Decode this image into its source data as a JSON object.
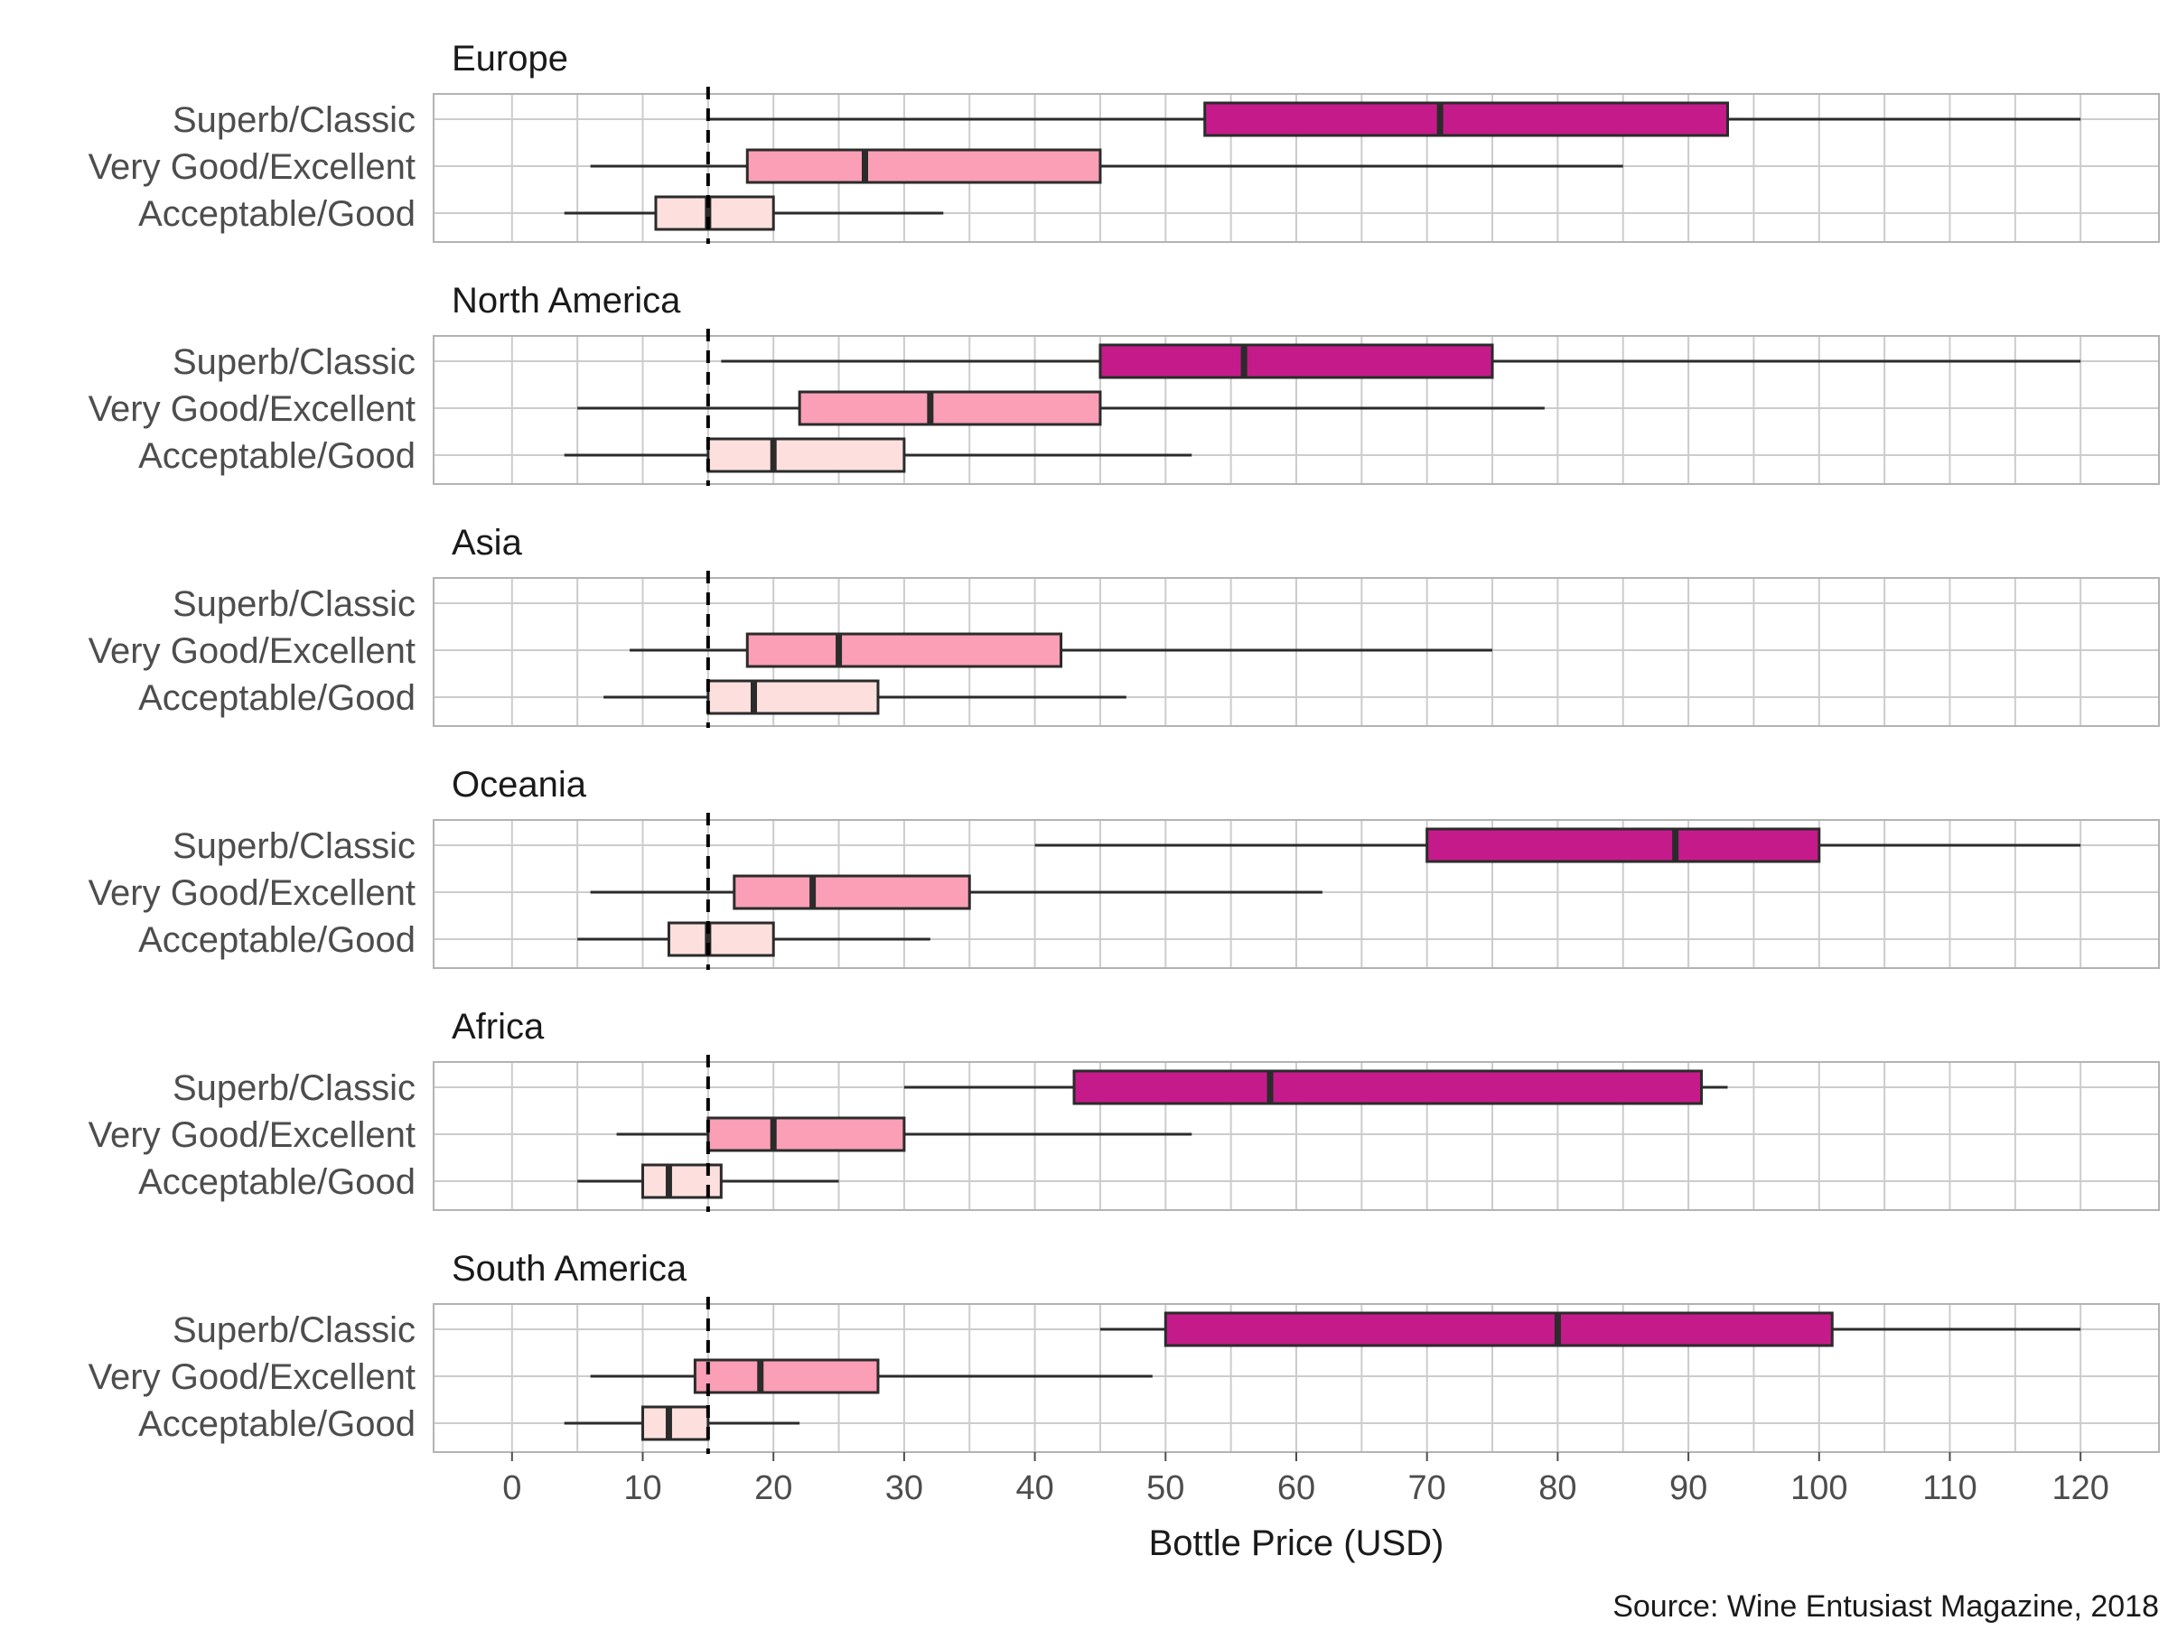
{
  "chart_data": {
    "type": "boxplot",
    "orientation": "horizontal",
    "xlabel": "Bottle Price (USD)",
    "caption": "Source: Wine Entusiast Magazine, 2018",
    "xlim": [
      -6,
      126
    ],
    "xticks": [
      0,
      10,
      20,
      30,
      40,
      50,
      60,
      70,
      80,
      90,
      100,
      110,
      120
    ],
    "reference_line": 15,
    "grid": true,
    "categories": [
      "Superb/Classic",
      "Very Good/Excellent",
      "Acceptable/Good"
    ],
    "colors": {
      "Superb/Classic": "#c51b8a",
      "Very Good/Excellent": "#fa9fb5",
      "Acceptable/Good": "#fde0dd"
    },
    "facets": [
      {
        "title": "Europe",
        "boxes": [
          {
            "category": "Superb/Classic",
            "whisker_low": 15,
            "q1": 53,
            "median": 71,
            "q3": 93,
            "whisker_high": 120
          },
          {
            "category": "Very Good/Excellent",
            "whisker_low": 6,
            "q1": 18,
            "median": 27,
            "q3": 45,
            "whisker_high": 85
          },
          {
            "category": "Acceptable/Good",
            "whisker_low": 4,
            "q1": 11,
            "median": 15,
            "q3": 20,
            "whisker_high": 33
          }
        ]
      },
      {
        "title": "North America",
        "boxes": [
          {
            "category": "Superb/Classic",
            "whisker_low": 16,
            "q1": 45,
            "median": 56,
            "q3": 75,
            "whisker_high": 120
          },
          {
            "category": "Very Good/Excellent",
            "whisker_low": 5,
            "q1": 22,
            "median": 32,
            "q3": 45,
            "whisker_high": 79
          },
          {
            "category": "Acceptable/Good",
            "whisker_low": 4,
            "q1": 15,
            "median": 20,
            "q3": 30,
            "whisker_high": 52
          }
        ]
      },
      {
        "title": "Asia",
        "boxes": [
          {
            "category": "Very Good/Excellent",
            "whisker_low": 9,
            "q1": 18,
            "median": 25,
            "q3": 42,
            "whisker_high": 75
          },
          {
            "category": "Acceptable/Good",
            "whisker_low": 7,
            "q1": 15,
            "median": 18.5,
            "q3": 28,
            "whisker_high": 47
          }
        ]
      },
      {
        "title": "Oceania",
        "boxes": [
          {
            "category": "Superb/Classic",
            "whisker_low": 40,
            "q1": 70,
            "median": 89,
            "q3": 100,
            "whisker_high": 120
          },
          {
            "category": "Very Good/Excellent",
            "whisker_low": 6,
            "q1": 17,
            "median": 23,
            "q3": 35,
            "whisker_high": 62
          },
          {
            "category": "Acceptable/Good",
            "whisker_low": 5,
            "q1": 12,
            "median": 15,
            "q3": 20,
            "whisker_high": 32
          }
        ]
      },
      {
        "title": "Africa",
        "boxes": [
          {
            "category": "Superb/Classic",
            "whisker_low": 30,
            "q1": 43,
            "median": 58,
            "q3": 91,
            "whisker_high": 93
          },
          {
            "category": "Very Good/Excellent",
            "whisker_low": 8,
            "q1": 15,
            "median": 20,
            "q3": 30,
            "whisker_high": 52
          },
          {
            "category": "Acceptable/Good",
            "whisker_low": 5,
            "q1": 10,
            "median": 12,
            "q3": 16,
            "whisker_high": 25
          }
        ]
      },
      {
        "title": "South America",
        "boxes": [
          {
            "category": "Superb/Classic",
            "whisker_low": 45,
            "q1": 50,
            "median": 80,
            "q3": 101,
            "whisker_high": 120
          },
          {
            "category": "Very Good/Excellent",
            "whisker_low": 6,
            "q1": 14,
            "median": 19,
            "q3": 28,
            "whisker_high": 49
          },
          {
            "category": "Acceptable/Good",
            "whisker_low": 4,
            "q1": 10,
            "median": 12,
            "q3": 15,
            "whisker_high": 22
          }
        ]
      }
    ]
  }
}
